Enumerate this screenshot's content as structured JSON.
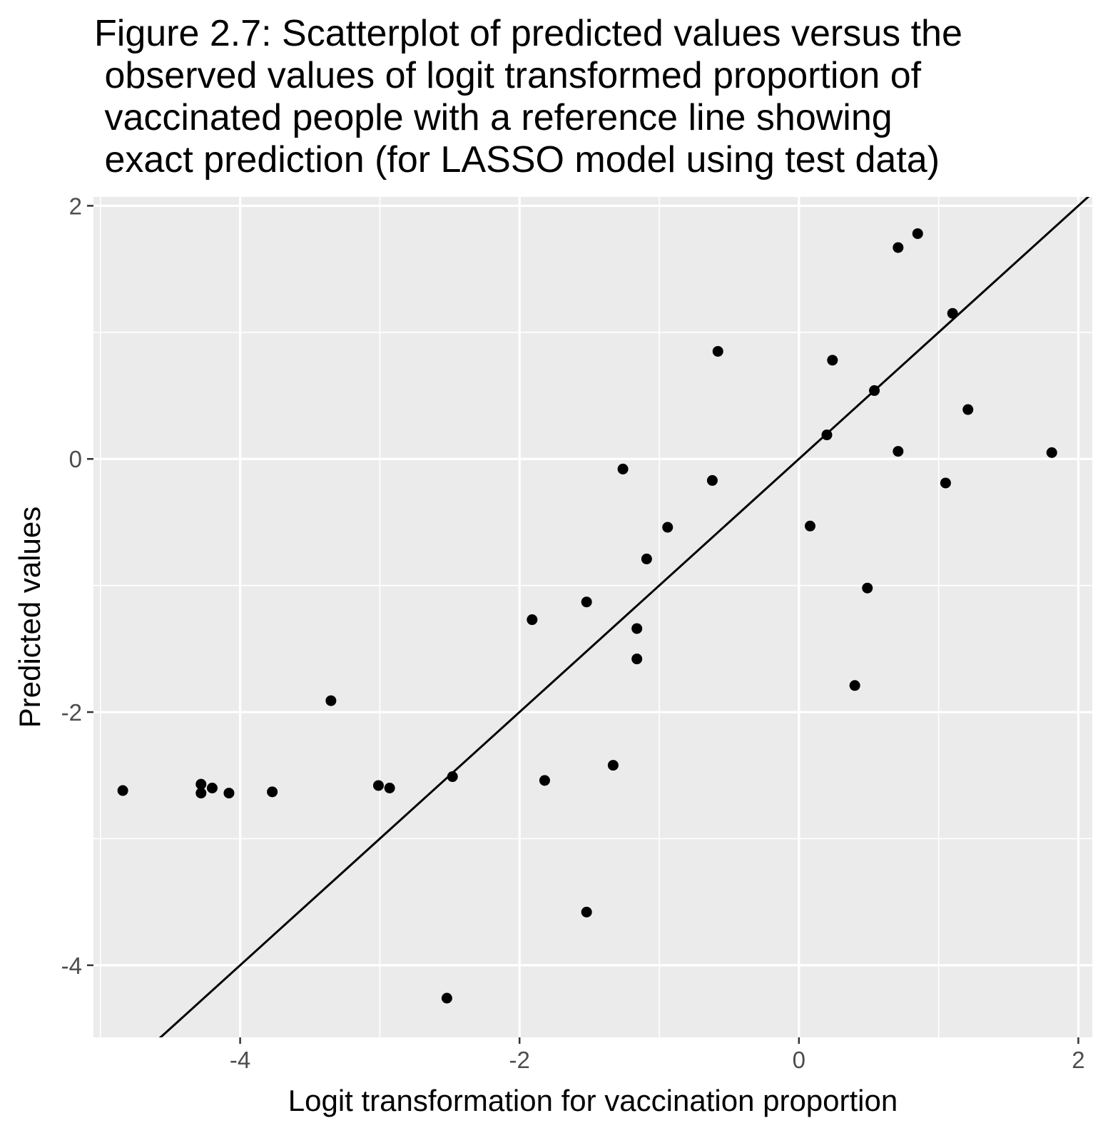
{
  "chart_data": {
    "type": "scatter",
    "title_lines": [
      "Figure 2.7: Scatterplot of predicted values versus the",
      " observed values of logit transformed proportion of",
      " vaccinated people with a reference line showing",
      " exact prediction (for LASSO model using test data)"
    ],
    "xlabel": "Logit transformation for vaccination proportion",
    "ylabel": "Predicted values",
    "xlim": [
      -5.05,
      2.1
    ],
    "ylim": [
      -4.57,
      2.07
    ],
    "x_ticks": [
      -4,
      -2,
      0,
      2
    ],
    "x_tick_labels": [
      "-4",
      "-2",
      "0",
      "2"
    ],
    "y_ticks": [
      -4,
      -2,
      0,
      2
    ],
    "y_tick_labels": [
      "-4",
      "-2",
      "0",
      "2"
    ],
    "grid": true,
    "reference_line": {
      "slope": 1,
      "intercept": 0
    },
    "colors": {
      "panel": "#ebebeb",
      "grid": "#ffffff",
      "points": "#000000",
      "line": "#000000",
      "tick_text": "#4d4d4d"
    },
    "points": [
      {
        "x": -4.84,
        "y": -2.62
      },
      {
        "x": -4.28,
        "y": -2.57
      },
      {
        "x": -4.28,
        "y": -2.64
      },
      {
        "x": -4.2,
        "y": -2.6
      },
      {
        "x": -4.08,
        "y": -2.64
      },
      {
        "x": -3.77,
        "y": -2.63
      },
      {
        "x": -3.35,
        "y": -1.91
      },
      {
        "x": -3.01,
        "y": -2.58
      },
      {
        "x": -2.93,
        "y": -2.6
      },
      {
        "x": -2.48,
        "y": -2.51
      },
      {
        "x": -2.52,
        "y": -4.26
      },
      {
        "x": -1.91,
        "y": -1.27
      },
      {
        "x": -1.82,
        "y": -2.54
      },
      {
        "x": -1.52,
        "y": -1.13
      },
      {
        "x": -1.52,
        "y": -3.58
      },
      {
        "x": -1.33,
        "y": -2.42
      },
      {
        "x": -1.26,
        "y": -0.08
      },
      {
        "x": -1.16,
        "y": -1.34
      },
      {
        "x": -1.16,
        "y": -1.58
      },
      {
        "x": -1.09,
        "y": -0.79
      },
      {
        "x": -0.94,
        "y": -0.54
      },
      {
        "x": -0.62,
        "y": -0.17
      },
      {
        "x": -0.58,
        "y": 0.85
      },
      {
        "x": 0.08,
        "y": -0.53
      },
      {
        "x": 0.2,
        "y": 0.19
      },
      {
        "x": 0.24,
        "y": 0.78
      },
      {
        "x": 0.4,
        "y": -1.79
      },
      {
        "x": 0.49,
        "y": -1.02
      },
      {
        "x": 0.54,
        "y": 0.54
      },
      {
        "x": 0.71,
        "y": 0.06
      },
      {
        "x": 0.71,
        "y": 1.67
      },
      {
        "x": 0.85,
        "y": 1.78
      },
      {
        "x": 1.05,
        "y": -0.19
      },
      {
        "x": 1.1,
        "y": 1.15
      },
      {
        "x": 1.21,
        "y": 0.39
      },
      {
        "x": 1.81,
        "y": 0.05
      }
    ]
  }
}
